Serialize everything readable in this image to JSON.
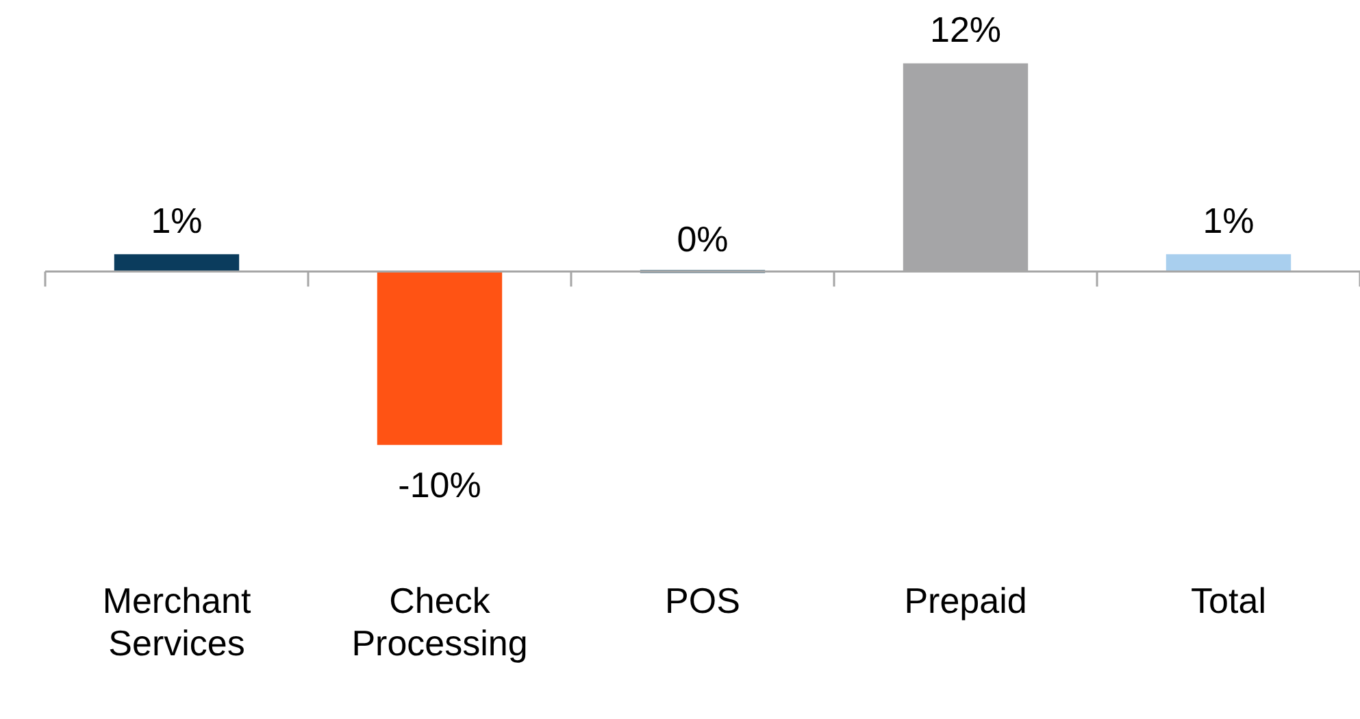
{
  "chart_data": {
    "type": "bar",
    "categories": [
      "Merchant Services",
      "Check Processing",
      "POS",
      "Prepaid",
      "Total"
    ],
    "values": [
      1,
      -10,
      0,
      12,
      1
    ],
    "colors": [
      "#0b3c5d",
      "#ff5314",
      "#0b3c5d",
      "#a5a5a7",
      "#a9cfee"
    ],
    "value_labels": [
      "1%",
      "-10%",
      "0%",
      "12%",
      "1%"
    ],
    "grid": false,
    "legend": false
  }
}
